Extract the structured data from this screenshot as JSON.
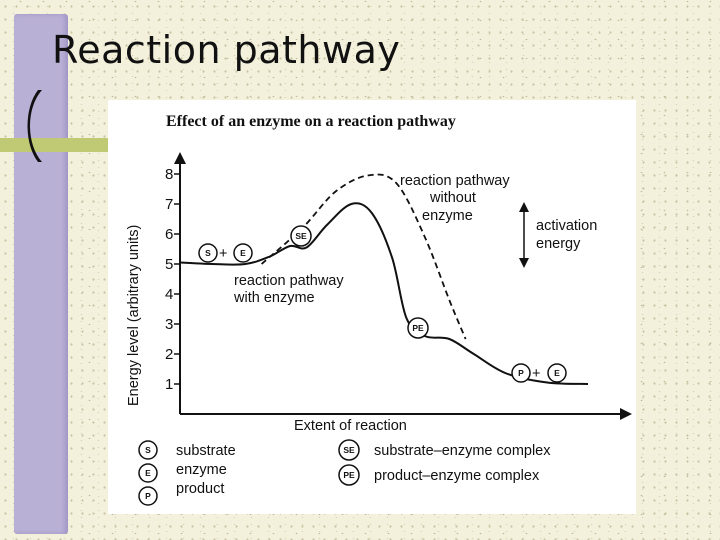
{
  "slide": {
    "title": "Reaction pathway"
  },
  "figure": {
    "title": "Effect of an enzyme on a reaction pathway",
    "ylabel": "Energy level (arbitrary units)",
    "xlabel": "Extent of reaction",
    "y_ticks": [
      "1",
      "2",
      "3",
      "4",
      "5",
      "6",
      "7",
      "8"
    ],
    "labels": {
      "without_1": "reaction pathway",
      "without_2": "without",
      "without_3": "enzyme",
      "with_1": "reaction pathway",
      "with_2": "with enzyme",
      "activation_1": "activation",
      "activation_2": "energy"
    },
    "markers": {
      "s": "S",
      "e": "E",
      "se": "SE",
      "pe": "PE",
      "p": "P",
      "plus": "+"
    },
    "legend": {
      "substrate": "substrate",
      "enzyme": "enzyme",
      "product": "product",
      "se_complex": "substrate–enzyme complex",
      "pe_complex": "product–enzyme complex"
    }
  },
  "chart_data": {
    "type": "line",
    "title": "Effect of an enzyme on a reaction pathway",
    "xlabel": "Extent of reaction",
    "ylabel": "Energy level (arbitrary units)",
    "ylim": [
      0.5,
      8.5
    ],
    "grid": false,
    "series": [
      {
        "name": "reaction pathway with enzyme",
        "style": "solid",
        "points": [
          [
            0,
            5.05
          ],
          [
            0.08,
            5.0
          ],
          [
            0.16,
            5.0
          ],
          [
            0.22,
            5.25
          ],
          [
            0.27,
            5.6
          ],
          [
            0.31,
            5.55
          ],
          [
            0.36,
            6.3
          ],
          [
            0.42,
            7.0
          ],
          [
            0.47,
            6.7
          ],
          [
            0.52,
            5.2
          ],
          [
            0.555,
            3.2
          ],
          [
            0.6,
            2.6
          ],
          [
            0.66,
            2.5
          ],
          [
            0.72,
            2.0
          ],
          [
            0.8,
            1.35
          ],
          [
            0.9,
            1.05
          ],
          [
            1.0,
            1.0
          ]
        ]
      },
      {
        "name": "reaction pathway without enzyme",
        "style": "dashed",
        "points": [
          [
            0.2,
            5.0
          ],
          [
            0.3,
            6.2
          ],
          [
            0.38,
            7.4
          ],
          [
            0.46,
            7.95
          ],
          [
            0.53,
            7.7
          ],
          [
            0.6,
            5.9
          ],
          [
            0.66,
            3.8
          ],
          [
            0.7,
            2.5
          ]
        ]
      }
    ]
  }
}
